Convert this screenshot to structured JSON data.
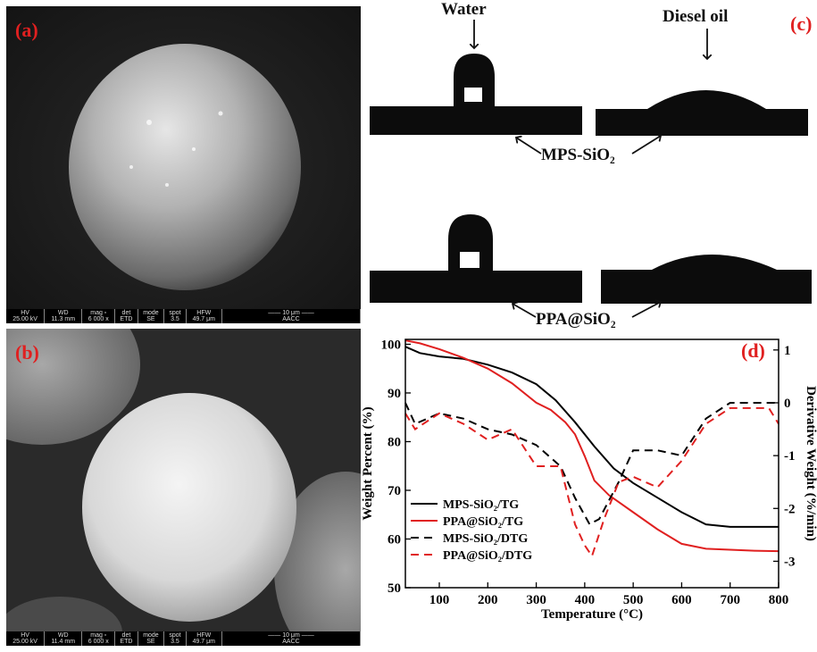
{
  "panel_a": {
    "label": "(a)",
    "sem_bar": {
      "headers": [
        "HV",
        "WD",
        "mag ▫",
        "det",
        "mode",
        "spot",
        "HFW",
        "—— 10 μm ——"
      ],
      "values": [
        "25.00 kV",
        "11.3 mm",
        "6 000 x",
        "ETD",
        "SE",
        "3.5",
        "49.7 μm",
        "AACC"
      ]
    }
  },
  "panel_b": {
    "label": "(b)",
    "sem_bar": {
      "headers": [
        "HV",
        "WD",
        "mag ▫",
        "det",
        "mode",
        "spot",
        "HFW",
        "—— 10 μm ——"
      ],
      "values": [
        "25.00 kV",
        "11.4 mm",
        "6 000 x",
        "ETD",
        "SE",
        "3.5",
        "49.7 μm",
        "AACC"
      ]
    }
  },
  "panel_c": {
    "label": "(c)",
    "water_label": "Water",
    "oil_label": "Diesel oil",
    "row1_label": "MPS-SiO₂",
    "row2_label": "PPA@SiO₂"
  },
  "panel_d": {
    "label": "(d)"
  },
  "chart_data": {
    "type": "line",
    "title": "",
    "xlabel": "Temperature (°C)",
    "ylabel": "Weight Percent (%)",
    "y2label": "Derivative Weight (%/min)",
    "xlim": [
      30,
      800
    ],
    "ylim": [
      50,
      101
    ],
    "y2lim": [
      -3.5,
      1.2
    ],
    "xticks": [
      100,
      200,
      300,
      400,
      500,
      600,
      700,
      800
    ],
    "yticks": [
      50,
      60,
      70,
      80,
      90,
      100
    ],
    "y2ticks": [
      -3,
      -2,
      -1,
      0,
      1
    ],
    "legend_position": "bottom-left",
    "series": [
      {
        "name": "MPS-SiO₂/TG",
        "axis": "left",
        "color": "#000000",
        "dash": "solid",
        "x": [
          30,
          60,
          100,
          150,
          200,
          250,
          300,
          340,
          380,
          420,
          460,
          500,
          550,
          600,
          650,
          700,
          750,
          800
        ],
        "y": [
          99.5,
          98.2,
          97.5,
          97.0,
          95.8,
          94.2,
          91.8,
          88.5,
          84.0,
          79.0,
          74.5,
          71.5,
          68.5,
          65.5,
          63.0,
          62.5,
          62.5,
          62.5
        ]
      },
      {
        "name": "PPA@SiO₂/TG",
        "axis": "left",
        "color": "#e02020",
        "dash": "solid",
        "x": [
          30,
          60,
          100,
          150,
          200,
          250,
          300,
          330,
          360,
          380,
          400,
          420,
          450,
          500,
          550,
          600,
          650,
          700,
          750,
          800
        ],
        "y": [
          100.8,
          100.2,
          99.0,
          97.2,
          95.0,
          92.0,
          88.0,
          86.5,
          84.0,
          81.5,
          77.0,
          72.0,
          69.0,
          65.5,
          62.0,
          59.0,
          58.0,
          57.8,
          57.6,
          57.5
        ]
      },
      {
        "name": "MPS-SiO₂/DTG",
        "axis": "right",
        "color": "#000000",
        "dash": "dash",
        "x": [
          30,
          50,
          100,
          150,
          200,
          250,
          300,
          350,
          380,
          410,
          430,
          470,
          500,
          550,
          600,
          650,
          700,
          750,
          800
        ],
        "y": [
          0.0,
          -0.4,
          -0.2,
          -0.3,
          -0.5,
          -0.6,
          -0.8,
          -1.2,
          -1.8,
          -2.3,
          -2.2,
          -1.5,
          -0.9,
          -0.9,
          -1.0,
          -0.3,
          0.0,
          0.0,
          0.0
        ]
      },
      {
        "name": "PPA@SiO₂/DTG",
        "axis": "right",
        "color": "#e02020",
        "dash": "dash",
        "x": [
          30,
          50,
          100,
          150,
          200,
          250,
          300,
          350,
          380,
          400,
          415,
          440,
          470,
          500,
          550,
          600,
          650,
          700,
          750,
          780,
          800
        ],
        "y": [
          -0.2,
          -0.5,
          -0.2,
          -0.4,
          -0.7,
          -0.5,
          -1.2,
          -1.2,
          -2.3,
          -2.7,
          -2.9,
          -2.2,
          -1.5,
          -1.4,
          -1.6,
          -1.1,
          -0.4,
          -0.1,
          -0.1,
          -0.1,
          -0.4
        ]
      }
    ]
  }
}
